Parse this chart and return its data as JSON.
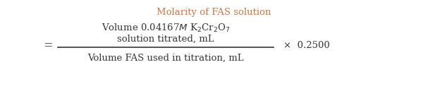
{
  "title": "Molarity of FAS solution",
  "title_color": "#c87941",
  "title_fontsize": 9.5,
  "numerator_line1": "Volume 0.04167$M$ K$_2$Cr$_2$O$_7$",
  "numerator_line2": "solution titrated, mL",
  "denominator": "Volume FAS used in titration, mL",
  "equals_sign": "=",
  "multiplier": "×  0.2500",
  "bg_color": "#ffffff",
  "text_color": "#3a3535",
  "line_color": "#3a3535",
  "formula_fontsize": 9.5,
  "fig_width": 6.07,
  "fig_height": 1.29,
  "dpi": 100
}
